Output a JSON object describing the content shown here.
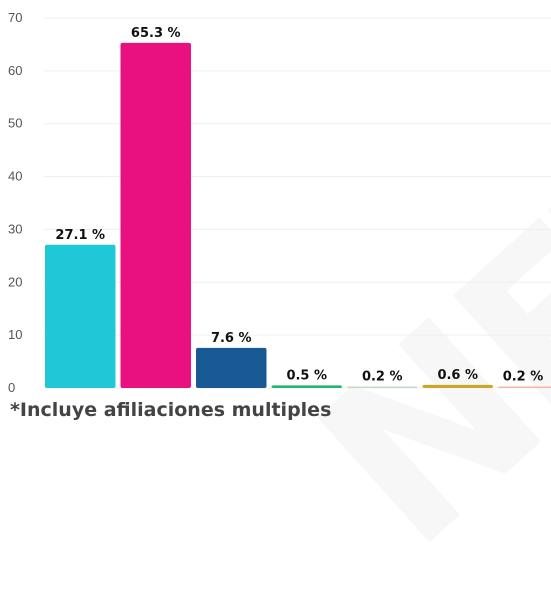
{
  "chart_data": {
    "type": "bar",
    "categories": [
      "",
      "",
      "",
      "",
      "",
      "",
      ""
    ],
    "values": [
      27.1,
      65.3,
      7.6,
      0.5,
      0.2,
      0.6,
      0.2
    ],
    "data_labels": [
      "27.1 %",
      "65.3 %",
      "7.6 %",
      "0.5 %",
      "0.2 %",
      "0.6 %",
      "0.2 %"
    ],
    "colors": [
      "#1ec8d6",
      "#e8117f",
      "#1a5a94",
      "#22b571",
      "#c8d8c8",
      "#c8a825",
      "#f2b8a8"
    ],
    "ylim": [
      0,
      70
    ],
    "yticks": [
      0,
      10,
      20,
      30,
      40,
      50,
      60,
      70
    ],
    "grid": true,
    "footnote": "*Incluye afiliaciones multiples"
  }
}
